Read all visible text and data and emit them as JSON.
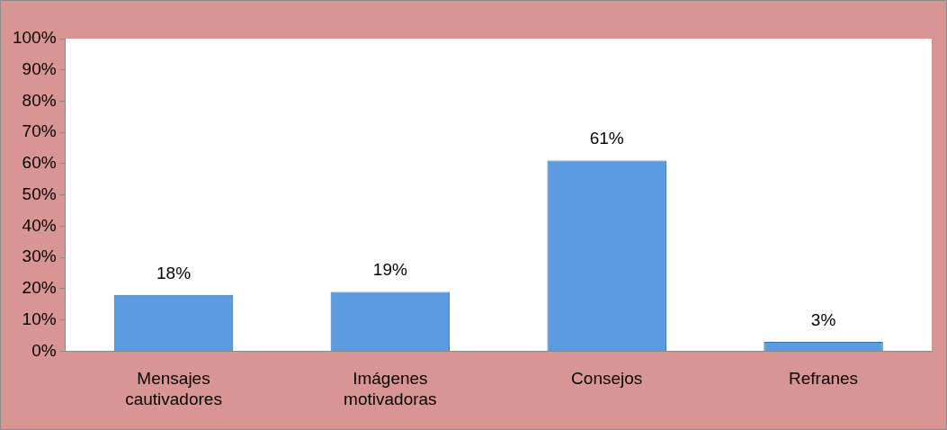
{
  "chart_data": {
    "type": "bar",
    "categories": [
      "Mensajes cautivadores",
      "Imágenes motivadoras",
      "Consejos",
      "Refranes"
    ],
    "values": [
      18,
      19,
      61,
      3
    ],
    "color": "#5b9be0",
    "value_labels": [
      "18%",
      "19%",
      "61%",
      "3%"
    ],
    "ylim": [
      0,
      100
    ],
    "yticks": [
      {
        "value": 0,
        "label": "0%"
      },
      {
        "value": 10,
        "label": "10%"
      },
      {
        "value": 20,
        "label": "20%"
      },
      {
        "value": 30,
        "label": "30%"
      },
      {
        "value": 40,
        "label": "40%"
      },
      {
        "value": 50,
        "label": "50%"
      },
      {
        "value": 60,
        "label": "60%"
      },
      {
        "value": 70,
        "label": "70%"
      },
      {
        "value": 80,
        "label": "80%"
      },
      {
        "value": 90,
        "label": "90%"
      },
      {
        "value": 100,
        "label": "100%"
      }
    ],
    "grid": false,
    "legend": false
  }
}
